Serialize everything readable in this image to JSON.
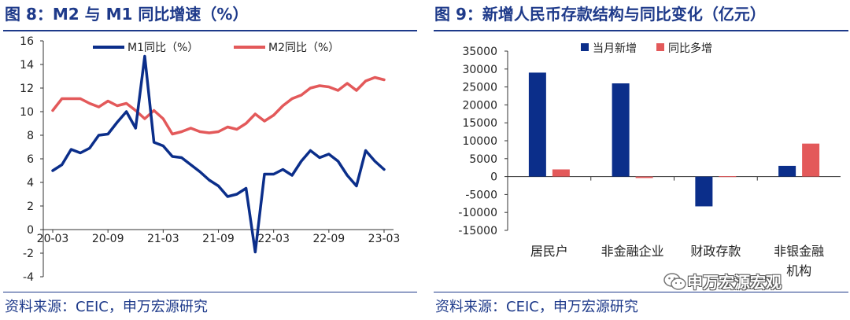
{
  "left": {
    "title": "图 8：M2 与 M1 同比增速（%）",
    "source": "资料来源：CEIC，申万宏源研究"
  },
  "right": {
    "title": "图 9：新增人民币存款结构与同比变化（亿元）",
    "source": "资料来源：CEIC，申万宏源研究"
  },
  "watermark": {
    "text": "申万宏源宏观",
    "icon": "wechat-icon"
  },
  "colors": {
    "blue": "#0b2e8a",
    "red": "#e3595a",
    "title": "#1e3a8a"
  },
  "chart_data": [
    {
      "type": "line",
      "title": "图 8：M2 与 M1 同比增速（%）",
      "ylim": [
        -4,
        16
      ],
      "yticks": [
        "-4",
        "-2",
        "0",
        "2",
        "4",
        "6",
        "8",
        "10",
        "12",
        "14",
        "16"
      ],
      "xticks": [
        {
          "label": "20-03",
          "index": 0
        },
        {
          "label": "20-09",
          "index": 6
        },
        {
          "label": "21-03",
          "index": 12
        },
        {
          "label": "21-09",
          "index": 18
        },
        {
          "label": "22-03",
          "index": 24
        },
        {
          "label": "22-09",
          "index": 30
        },
        {
          "label": "23-03",
          "index": 36
        }
      ],
      "legend_position": "top",
      "series": [
        {
          "name": "M1同比（%）",
          "color": "#0b2e8a",
          "values": [
            5.0,
            5.5,
            6.8,
            6.5,
            6.9,
            8.0,
            8.1,
            9.1,
            10.0,
            8.6,
            14.7,
            7.4,
            7.1,
            6.2,
            6.1,
            5.5,
            4.9,
            4.2,
            3.7,
            2.8,
            3.0,
            3.5,
            -1.9,
            4.7,
            4.7,
            5.1,
            4.6,
            5.8,
            6.7,
            6.1,
            6.4,
            5.8,
            4.6,
            3.7,
            6.7,
            5.8,
            5.1
          ]
        },
        {
          "name": "M2同比（%）",
          "color": "#e3595a",
          "values": [
            10.1,
            11.1,
            11.1,
            11.1,
            10.7,
            10.4,
            10.9,
            10.5,
            10.7,
            10.1,
            9.4,
            10.1,
            9.4,
            8.1,
            8.3,
            8.6,
            8.3,
            8.2,
            8.3,
            8.7,
            8.5,
            9.0,
            9.8,
            9.2,
            9.7,
            10.5,
            11.1,
            11.4,
            12.0,
            12.2,
            12.1,
            11.8,
            12.4,
            11.8,
            12.6,
            12.9,
            12.7
          ]
        }
      ]
    },
    {
      "type": "bar",
      "title": "图 9：新增人民币存款结构与同比变化（亿元）",
      "categories": [
        "居民户",
        "非金融企业",
        "财政存款",
        "非银金融机构"
      ],
      "category_lines": [
        [
          "居民户"
        ],
        [
          "非金融企业"
        ],
        [
          "财政存款"
        ],
        [
          "非银金融",
          "机构"
        ]
      ],
      "ylim": [
        -15000,
        35000
      ],
      "yticks": [
        "-15000",
        "-10000",
        "-5000",
        "0",
        "5000",
        "10000",
        "15000",
        "20000",
        "25000",
        "30000",
        "35000"
      ],
      "legend_position": "top",
      "series": [
        {
          "name": "当月新增",
          "color": "#0b2e8a",
          "values": [
            29000,
            26000,
            -8300,
            3000
          ]
        },
        {
          "name": "同比多增",
          "color": "#e3595a",
          "values": [
            2000,
            -400,
            100,
            9200
          ]
        }
      ]
    }
  ]
}
